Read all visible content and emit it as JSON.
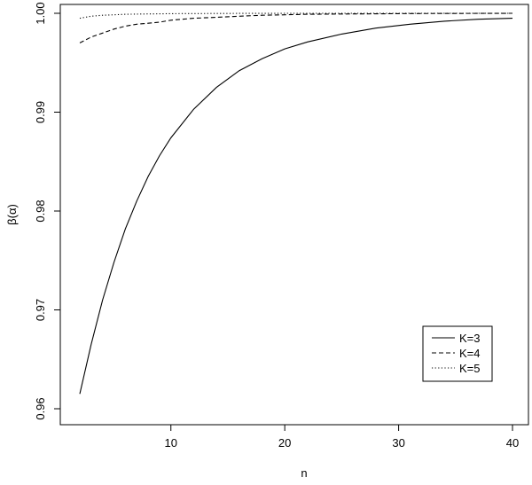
{
  "chart_data": {
    "type": "line",
    "title": "",
    "xlabel": "n",
    "ylabel": "β(α)",
    "xlim": [
      2,
      40
    ],
    "ylim": [
      0.96,
      1.0
    ],
    "x_ticks": [
      10,
      20,
      30,
      40
    ],
    "x_tick_labels": [
      "10",
      "20",
      "30",
      "40"
    ],
    "y_ticks": [
      0.96,
      0.97,
      0.98,
      0.99,
      1.0
    ],
    "y_tick_labels": [
      "0.96",
      "0.97",
      "0.98",
      "0.99",
      "1.00"
    ],
    "grid": false,
    "legend": {
      "placement": "bottom-right"
    },
    "x": [
      2,
      3,
      4,
      5,
      6,
      7,
      8,
      9,
      10,
      12,
      14,
      16,
      18,
      20,
      22,
      25,
      28,
      31,
      34,
      37,
      40
    ],
    "series": [
      {
        "name": "K=3",
        "linestyle": "solid",
        "values": [
          0.9615,
          0.9665,
          0.971,
          0.9748,
          0.9782,
          0.981,
          0.9835,
          0.9856,
          0.9874,
          0.9903,
          0.9925,
          0.9942,
          0.9954,
          0.9964,
          0.9971,
          0.9979,
          0.9985,
          0.9989,
          0.9992,
          0.9994,
          0.9995
        ]
      },
      {
        "name": "K=4",
        "linestyle": "dashed",
        "values": [
          0.997,
          0.9976,
          0.998,
          0.9984,
          0.9987,
          0.9989,
          0.999,
          0.9991,
          0.9993,
          0.9995,
          0.9996,
          0.9997,
          0.9998,
          0.99985,
          0.9999,
          0.99993,
          0.99995,
          0.99997,
          0.99998,
          0.99999,
          1.0
        ]
      },
      {
        "name": "K=5",
        "linestyle": "dotted",
        "values": [
          0.9995,
          0.9997,
          0.9998,
          0.99985,
          0.9999,
          0.99992,
          0.99994,
          0.99995,
          0.99996,
          0.99997,
          0.99998,
          0.99999,
          0.99999,
          1.0,
          1.0,
          1.0,
          1.0,
          1.0,
          1.0,
          1.0,
          1.0
        ]
      }
    ]
  }
}
